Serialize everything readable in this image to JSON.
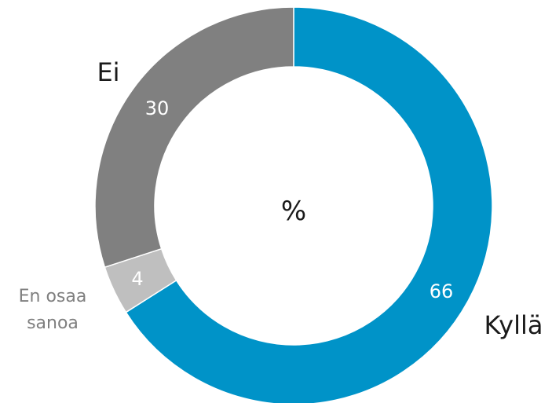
{
  "chart_data": {
    "type": "pie",
    "center_label": "%",
    "slices": [
      {
        "label": "Kyllä",
        "value": 66,
        "color": "#0093C8"
      },
      {
        "label": "En osaa sanoa",
        "label_lines": [
          "En osaa",
          "sanoa"
        ],
        "value": 4,
        "color": "#BFBFBF"
      },
      {
        "label": "Ei",
        "value": 30,
        "color": "#808080"
      }
    ]
  }
}
